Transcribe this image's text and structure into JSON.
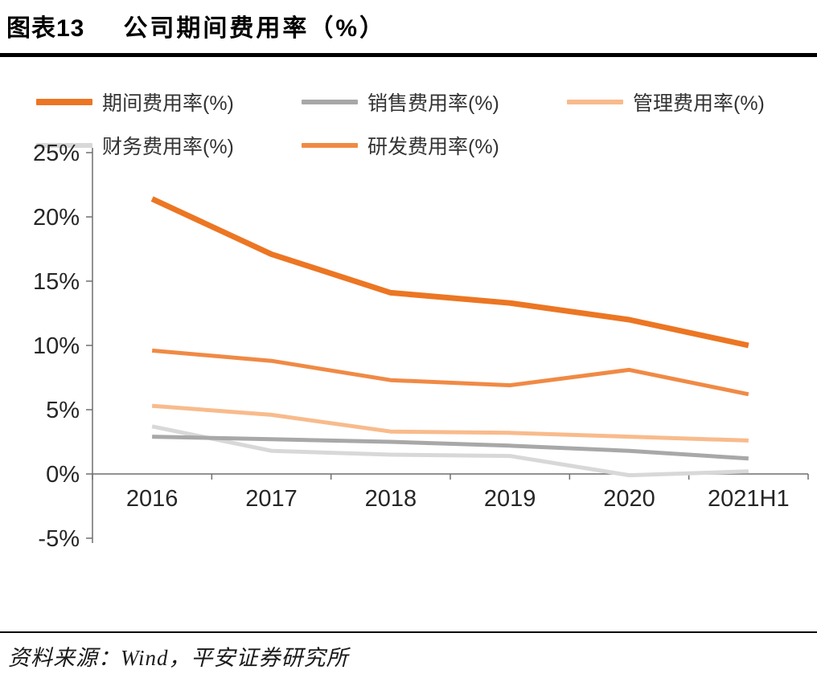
{
  "header": {
    "label": "图表13",
    "title": "公司期间费用率（%）"
  },
  "footer": {
    "source": "资料来源：Wind，平安证券研究所"
  },
  "chart_data": {
    "type": "line",
    "title": "公司期间费用率（%）",
    "xlabel": "",
    "ylabel": "",
    "categories": [
      "2016",
      "2017",
      "2018",
      "2019",
      "2020",
      "2021H1"
    ],
    "series": [
      {
        "name": "期间费用率(%)",
        "color": "#EC7623",
        "width": 7,
        "values": [
          21.4,
          17.1,
          14.1,
          13.3,
          12.0,
          10.0
        ]
      },
      {
        "name": "销售费用率(%)",
        "color": "#A8A8A8",
        "width": 5,
        "values": [
          2.9,
          2.7,
          2.5,
          2.2,
          1.8,
          1.2
        ]
      },
      {
        "name": "管理费用率(%)",
        "color": "#F8BB8C",
        "width": 5,
        "values": [
          5.3,
          4.6,
          3.3,
          3.2,
          2.9,
          2.6
        ]
      },
      {
        "name": "财务费用率(%)",
        "color": "#D8D8D8",
        "width": 5,
        "values": [
          3.7,
          1.8,
          1.5,
          1.4,
          -0.1,
          0.2
        ]
      },
      {
        "name": "研发费用率(%)",
        "color": "#F08A45",
        "width": 5,
        "values": [
          9.6,
          8.8,
          7.3,
          6.9,
          8.1,
          6.2
        ]
      }
    ],
    "ylim": [
      -5,
      25
    ],
    "yticks": [
      25,
      20,
      15,
      10,
      5,
      0,
      -5
    ],
    "ytick_labels": [
      "25%",
      "20%",
      "15%",
      "10%",
      "5%",
      "0%",
      "-5%"
    ],
    "grid": false,
    "legend_position": "top",
    "draw_order": [
      3,
      1,
      2,
      4,
      0
    ]
  }
}
